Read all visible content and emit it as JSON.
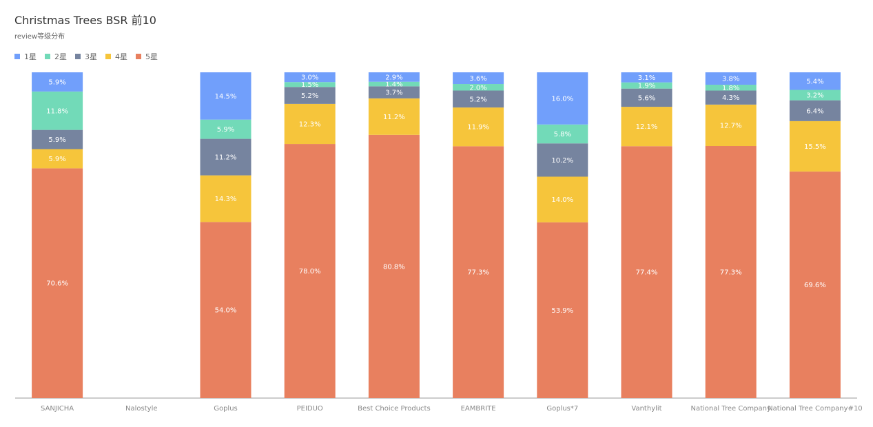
{
  "chart_data": {
    "type": "bar",
    "stacked": true,
    "normalized": true,
    "title": "Christmas Trees BSR 前10",
    "subtitle": "review等级分布",
    "categories": [
      "SANJICHA",
      "Nalostyle",
      "Goplus",
      "PEIDUO",
      "Best Choice Products",
      "EAMBRITE",
      "Goplus*7",
      "Vanthylit",
      "National Tree Company",
      "National Tree Company#10"
    ],
    "series": [
      {
        "name": "5星",
        "color": "#e8805f",
        "values": [
          70.6,
          null,
          54.0,
          78.0,
          80.8,
          77.3,
          53.9,
          77.4,
          77.3,
          69.6
        ],
        "labels": [
          "70.6%",
          "",
          "54.0%",
          "78.0%",
          "80.8%",
          "77.3%",
          "53.9%",
          "77.4%",
          "77.3%",
          "69.6%"
        ]
      },
      {
        "name": "4星",
        "color": "#f6c53b",
        "values": [
          5.9,
          null,
          14.3,
          12.3,
          11.2,
          11.9,
          14.0,
          12.1,
          12.7,
          15.5
        ],
        "labels": [
          "5.9%",
          "",
          "14.3%",
          "12.3%",
          "11.2%",
          "11.9%",
          "14.0%",
          "12.1%",
          "12.7%",
          "15.5%"
        ]
      },
      {
        "name": "3星",
        "color": "#76849f",
        "values": [
          5.9,
          null,
          11.2,
          5.2,
          3.7,
          5.2,
          10.2,
          5.6,
          4.3,
          6.4
        ],
        "labels": [
          "5.9%",
          "",
          "11.2%",
          "5.2%",
          "3.7%",
          "5.2%",
          "10.2%",
          "5.6%",
          "4.3%",
          "6.4%"
        ]
      },
      {
        "name": "2星",
        "color": "#72dab8",
        "values": [
          11.8,
          null,
          5.9,
          1.5,
          1.4,
          2.0,
          5.8,
          1.9,
          1.8,
          3.2
        ],
        "labels": [
          "11.8%",
          "",
          "5.9%",
          "1.5%",
          "1.4%",
          "2.0%",
          "5.8%",
          "1.9%",
          "1.8%",
          "3.2%"
        ]
      },
      {
        "name": "1星",
        "color": "#719ffb",
        "values": [
          5.9,
          null,
          14.5,
          3.0,
          2.9,
          3.6,
          16.0,
          3.1,
          3.8,
          5.4
        ],
        "labels": [
          "5.9%",
          "",
          "14.5%",
          "3.0%",
          "2.9%",
          "3.6%",
          "16.0%",
          "3.1%",
          "3.8%",
          "5.4%"
        ]
      }
    ],
    "legend": [
      {
        "name": "1星",
        "color": "#719ffb"
      },
      {
        "name": "2星",
        "color": "#72dab8"
      },
      {
        "name": "3星",
        "color": "#76849f"
      },
      {
        "name": "4星",
        "color": "#f6c53b"
      },
      {
        "name": "5星",
        "color": "#e8805f"
      }
    ],
    "legend_position": "top-left",
    "ylim": [
      0,
      100
    ],
    "grid": false
  }
}
